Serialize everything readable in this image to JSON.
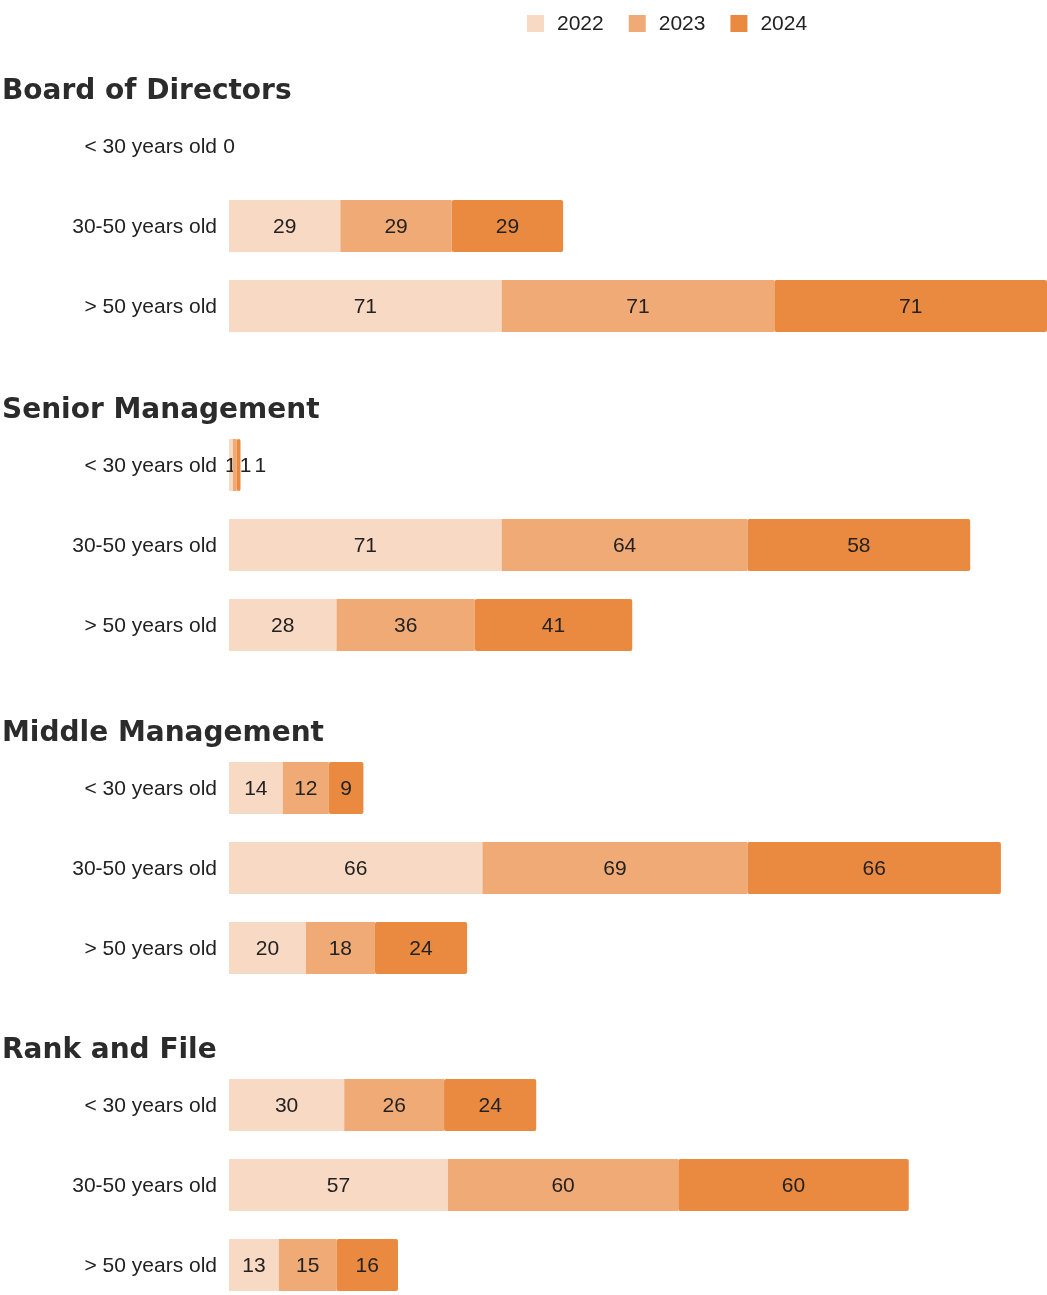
{
  "chart_data": [
    {
      "type": "bar",
      "orientation": "horizontal",
      "stacked": true,
      "title": "Board of Directors",
      "categories": [
        "< 30 years old",
        "30-50 years old",
        "> 50 years old"
      ],
      "legend": "top",
      "series": [
        {
          "name": "2022",
          "color": "#f7d9c4",
          "values": [
            0,
            29,
            71
          ],
          "value_labels": [
            null,
            "29",
            "71"
          ]
        },
        {
          "name": "2023",
          "color": "#f0aa76",
          "values": [
            0,
            29,
            71
          ],
          "value_labels": [
            null,
            "29",
            "71"
          ]
        },
        {
          "name": "2024",
          "color": "#e98a40",
          "values": [
            0,
            29,
            71
          ],
          "value_labels": [
            "0",
            "29",
            "71"
          ]
        }
      ]
    },
    {
      "type": "bar",
      "orientation": "horizontal",
      "stacked": true,
      "title": "Senior Management",
      "categories": [
        "< 30 years old",
        "30-50 years old",
        "> 50 years old"
      ],
      "data_labels": true,
      "series": [
        {
          "color": "#f7d9c4",
          "values": [
            1,
            71,
            28
          ]
        },
        {
          "color": "#f0aa76",
          "values": [
            1,
            64,
            36
          ]
        },
        {
          "color": "#e98a40",
          "values": [
            1,
            58,
            41
          ]
        }
      ]
    },
    {
      "type": "bar",
      "orientation": "horizontal",
      "stacked": true,
      "title": "Middle Management",
      "categories": [
        "< 30 years old",
        "30-50 years old",
        "> 50 years old"
      ],
      "data_labels": true,
      "series": [
        {
          "color": "#f7d9c4",
          "values": [
            14,
            66,
            20
          ]
        },
        {
          "color": "#f0aa76",
          "values": [
            12,
            69,
            18
          ]
        },
        {
          "color": "#e98a40",
          "values": [
            9,
            66,
            24
          ]
        }
      ]
    },
    {
      "type": "bar",
      "orientation": "horizontal",
      "stacked": true,
      "title": "Rank and File",
      "categories": [
        "< 30 years old",
        "30-50 years old",
        "> 50 years old"
      ],
      "data_labels": true,
      "series": [
        {
          "color": "#f7d9c4",
          "values": [
            30,
            57,
            13
          ]
        },
        {
          "color": "#f0aa76",
          "values": [
            26,
            60,
            15
          ]
        },
        {
          "color": "#e98a40",
          "values": [
            24,
            60,
            16
          ]
        }
      ]
    }
  ]
}
